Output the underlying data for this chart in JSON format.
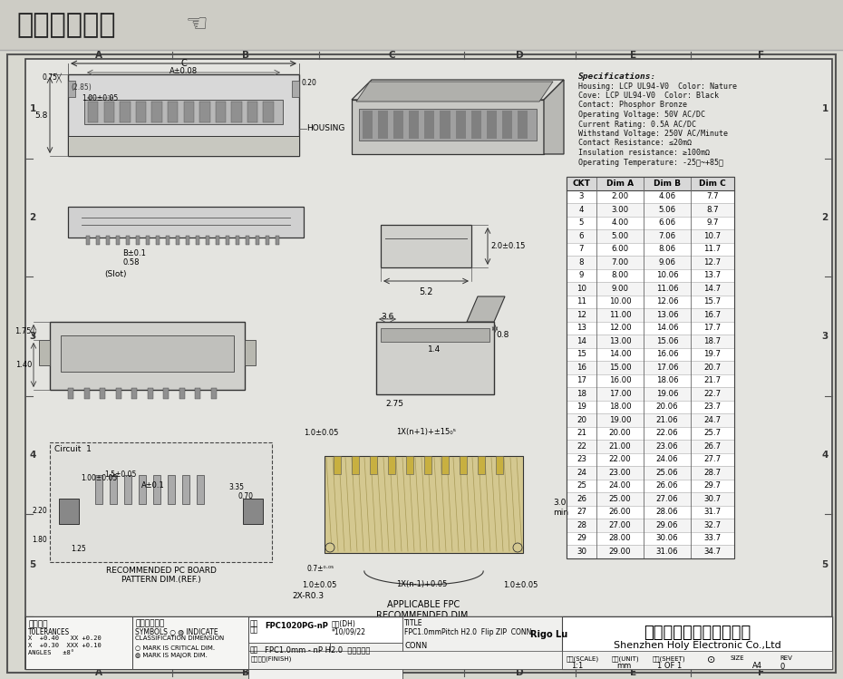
{
  "title": "在线图纸下载",
  "bg_color_header": "#d0cfc8",
  "bg_color_body": "#d8d8d0",
  "bg_inner": "#e8e8e4",
  "specs": [
    "Specifications:",
    "Housing: LCP UL94-V0  Color: Nature",
    "Cove: LCP UL94-V0  Color: Black",
    "Contact: Phosphor Bronze",
    "Operating Voltage: 50V AC/DC",
    "Current Rating: 0.5A AC/DC",
    "Withstand Voltage: 250V AC/Minute",
    "Contact Resistance: ≤20mΩ",
    "Insulation resistance: ≥100mΩ",
    "Operating Temperature: -25℃~+85℃"
  ],
  "table_headers": [
    "CKT",
    "Dim A",
    "Dim B",
    "Dim C"
  ],
  "table_data": [
    [
      3,
      "2.00",
      "4.06",
      "7.7"
    ],
    [
      4,
      "3.00",
      "5.06",
      "8.7"
    ],
    [
      5,
      "4.00",
      "6.06",
      "9.7"
    ],
    [
      6,
      "5.00",
      "7.06",
      "10.7"
    ],
    [
      7,
      "6.00",
      "8.06",
      "11.7"
    ],
    [
      8,
      "7.00",
      "9.06",
      "12.7"
    ],
    [
      9,
      "8.00",
      "10.06",
      "13.7"
    ],
    [
      10,
      "9.00",
      "11.06",
      "14.7"
    ],
    [
      11,
      "10.00",
      "12.06",
      "15.7"
    ],
    [
      12,
      "11.00",
      "13.06",
      "16.7"
    ],
    [
      13,
      "12.00",
      "14.06",
      "17.7"
    ],
    [
      14,
      "13.00",
      "15.06",
      "18.7"
    ],
    [
      15,
      "14.00",
      "16.06",
      "19.7"
    ],
    [
      16,
      "15.00",
      "17.06",
      "20.7"
    ],
    [
      17,
      "16.00",
      "18.06",
      "21.7"
    ],
    [
      18,
      "17.00",
      "19.06",
      "22.7"
    ],
    [
      19,
      "18.00",
      "20.06",
      "23.7"
    ],
    [
      20,
      "19.00",
      "21.06",
      "24.7"
    ],
    [
      21,
      "20.00",
      "22.06",
      "25.7"
    ],
    [
      22,
      "21.00",
      "23.06",
      "26.7"
    ],
    [
      23,
      "22.00",
      "24.06",
      "27.7"
    ],
    [
      24,
      "23.00",
      "25.06",
      "28.7"
    ],
    [
      25,
      "24.00",
      "26.06",
      "29.7"
    ],
    [
      26,
      "25.00",
      "27.06",
      "30.7"
    ],
    [
      27,
      "26.00",
      "28.06",
      "31.7"
    ],
    [
      28,
      "27.00",
      "29.06",
      "32.7"
    ],
    [
      29,
      "28.00",
      "30.06",
      "33.7"
    ],
    [
      30,
      "29.00",
      "31.06",
      "34.7"
    ]
  ],
  "company_cn": "深圳市宏利电子有限公司",
  "company_en": "Shenzhen Holy Electronic Co.,Ltd",
  "part_no": "FPC1020PG-nP",
  "date": "10/09/22",
  "product_name": "FPC1.0mm - nP H2.0  翻盖式下接",
  "title_box": "FPC1.0mmPitch H2.0  Flip ZIP  CONN",
  "drawer": "Rigo Lu",
  "scale": "1:1",
  "unit": "mm",
  "sheet": "1 OF 1",
  "size": "A4",
  "grid_cols": [
    "A",
    "B",
    "C",
    "D",
    "E",
    "F"
  ],
  "grid_rows": [
    "1",
    "2",
    "3",
    "4",
    "5"
  ]
}
